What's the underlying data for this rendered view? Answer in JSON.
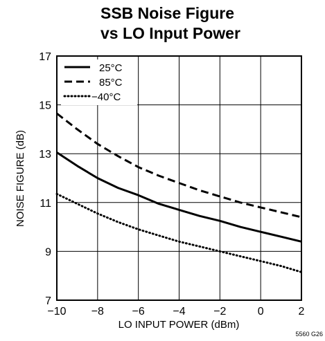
{
  "chart_data": {
    "type": "line",
    "title_lines": [
      "SSB Noise Figure",
      "vs LO Input Power"
    ],
    "xlabel": "LO INPUT POWER (dBm)",
    "ylabel": "NOISE FIGURE (dB)",
    "xlim": [
      -10,
      2
    ],
    "ylim": [
      7,
      17
    ],
    "xticks": [
      -10,
      -8,
      -6,
      -4,
      -2,
      0,
      2
    ],
    "yticks": [
      7,
      9,
      11,
      13,
      15,
      17
    ],
    "xtick_labels": [
      "−10",
      "−8",
      "−6",
      "−4",
      "−2",
      "0",
      "2"
    ],
    "ytick_labels": [
      "7",
      "9",
      "11",
      "13",
      "15",
      "17"
    ],
    "grid": true,
    "legend_position": "top-left",
    "series": [
      {
        "name": "25°C",
        "style": "solid",
        "x": [
          -10,
          -9,
          -8,
          -7,
          -6,
          -5,
          -4,
          -3,
          -2,
          -1,
          0,
          1,
          2
        ],
        "y": [
          13.05,
          12.5,
          12.0,
          11.6,
          11.3,
          10.95,
          10.7,
          10.45,
          10.25,
          10.0,
          9.8,
          9.6,
          9.4
        ]
      },
      {
        "name": "85°C",
        "style": "dashed",
        "x": [
          -10,
          -9,
          -8,
          -7,
          -6,
          -5,
          -4,
          -3,
          -2,
          -1,
          0,
          1,
          2
        ],
        "y": [
          14.65,
          14.0,
          13.4,
          12.9,
          12.45,
          12.1,
          11.8,
          11.5,
          11.25,
          11.0,
          10.8,
          10.6,
          10.4
        ]
      },
      {
        "name": "−40°C",
        "style": "dotted",
        "x": [
          -10,
          -9,
          -8,
          -7,
          -6,
          -5,
          -4,
          -3,
          -2,
          -1,
          0,
          1,
          2
        ],
        "y": [
          11.35,
          10.95,
          10.55,
          10.2,
          9.9,
          9.65,
          9.4,
          9.2,
          9.0,
          8.8,
          8.6,
          8.4,
          8.15
        ]
      }
    ],
    "figure_id": "5560 G26"
  }
}
